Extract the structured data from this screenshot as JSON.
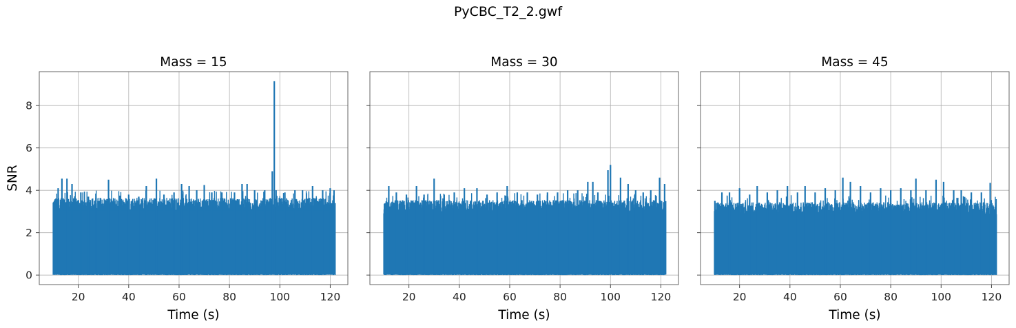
{
  "figure": {
    "suptitle": "PyCBC_T2_2.gwf"
  },
  "chart_data": [
    {
      "type": "line",
      "title": "Mass = 15",
      "xlabel": "Time (s)",
      "ylabel": "SNR",
      "xlim": [
        4.5,
        127
      ],
      "ylim": [
        -0.45,
        9.6
      ],
      "xticks": [
        20,
        40,
        60,
        80,
        100,
        120
      ],
      "yticks": [
        0,
        2,
        4,
        6,
        8
      ],
      "grid": true,
      "color": "#1f77b4",
      "series": [
        {
          "x_range": [
            10,
            122
          ],
          "noise_floor": 0.05,
          "typical_max": 3.6,
          "peaks": [
            {
              "x": 10.2,
              "y": 3.3
            },
            {
              "x": 12,
              "y": 4.1
            },
            {
              "x": 13.5,
              "y": 4.55
            },
            {
              "x": 15.5,
              "y": 4.55
            },
            {
              "x": 17.5,
              "y": 4.3
            },
            {
              "x": 21,
              "y": 3.9
            },
            {
              "x": 24,
              "y": 3.7
            },
            {
              "x": 27,
              "y": 3.65
            },
            {
              "x": 32,
              "y": 4.5
            },
            {
              "x": 36.5,
              "y": 3.75
            },
            {
              "x": 40,
              "y": 3.8
            },
            {
              "x": 44,
              "y": 3.7
            },
            {
              "x": 47,
              "y": 4.2
            },
            {
              "x": 51,
              "y": 4.55
            },
            {
              "x": 54,
              "y": 3.8
            },
            {
              "x": 58,
              "y": 3.9
            },
            {
              "x": 61,
              "y": 4.3
            },
            {
              "x": 64,
              "y": 4.2
            },
            {
              "x": 67,
              "y": 4.0
            },
            {
              "x": 70,
              "y": 4.25
            },
            {
              "x": 73,
              "y": 3.9
            },
            {
              "x": 77,
              "y": 3.9
            },
            {
              "x": 82,
              "y": 3.9
            },
            {
              "x": 85,
              "y": 4.3
            },
            {
              "x": 87,
              "y": 4.3
            },
            {
              "x": 90,
              "y": 4.0
            },
            {
              "x": 94,
              "y": 4.0
            },
            {
              "x": 97,
              "y": 4.9
            },
            {
              "x": 97.8,
              "y": 9.15
            },
            {
              "x": 98.5,
              "y": 4.0
            },
            {
              "x": 102,
              "y": 3.9
            },
            {
              "x": 106,
              "y": 4.0
            },
            {
              "x": 109,
              "y": 4.0
            },
            {
              "x": 113,
              "y": 4.2
            },
            {
              "x": 117,
              "y": 4.0
            },
            {
              "x": 120,
              "y": 4.1
            },
            {
              "x": 121.5,
              "y": 4.0
            }
          ]
        }
      ]
    },
    {
      "type": "line",
      "title": "Mass = 30",
      "xlabel": "Time (s)",
      "ylabel": "",
      "xlim": [
        4.5,
        127
      ],
      "ylim": [
        -0.45,
        9.6
      ],
      "xticks": [
        20,
        40,
        60,
        80,
        100,
        120
      ],
      "yticks": [
        0,
        2,
        4,
        6,
        8
      ],
      "grid": true,
      "color": "#1f77b4",
      "series": [
        {
          "x_range": [
            10,
            122
          ],
          "noise_floor": 0.05,
          "typical_max": 3.5,
          "peaks": [
            {
              "x": 10.2,
              "y": 3.1
            },
            {
              "x": 12,
              "y": 4.2
            },
            {
              "x": 15,
              "y": 3.9
            },
            {
              "x": 19,
              "y": 3.8
            },
            {
              "x": 23,
              "y": 4.2
            },
            {
              "x": 26,
              "y": 3.8
            },
            {
              "x": 30,
              "y": 4.55
            },
            {
              "x": 34,
              "y": 3.8
            },
            {
              "x": 38,
              "y": 3.9
            },
            {
              "x": 42,
              "y": 4.1
            },
            {
              "x": 47,
              "y": 4.1
            },
            {
              "x": 51,
              "y": 3.8
            },
            {
              "x": 55,
              "y": 3.9
            },
            {
              "x": 59,
              "y": 4.2
            },
            {
              "x": 63,
              "y": 3.9
            },
            {
              "x": 67,
              "y": 3.9
            },
            {
              "x": 71,
              "y": 3.8
            },
            {
              "x": 75,
              "y": 3.9
            },
            {
              "x": 79,
              "y": 3.9
            },
            {
              "x": 83,
              "y": 4.0
            },
            {
              "x": 87,
              "y": 4.0
            },
            {
              "x": 91,
              "y": 4.4
            },
            {
              "x": 93,
              "y": 4.4
            },
            {
              "x": 95,
              "y": 3.9
            },
            {
              "x": 99,
              "y": 4.95
            },
            {
              "x": 100,
              "y": 5.2
            },
            {
              "x": 104,
              "y": 4.6
            },
            {
              "x": 107,
              "y": 4.3
            },
            {
              "x": 110,
              "y": 4.0
            },
            {
              "x": 113,
              "y": 3.9
            },
            {
              "x": 116,
              "y": 4.0
            },
            {
              "x": 119.5,
              "y": 4.6
            },
            {
              "x": 121.5,
              "y": 4.3
            }
          ]
        }
      ]
    },
    {
      "type": "line",
      "title": "Mass = 45",
      "xlabel": "Time (s)",
      "ylabel": "",
      "xlim": [
        4.5,
        127
      ],
      "ylim": [
        -0.45,
        9.6
      ],
      "xticks": [
        20,
        40,
        60,
        80,
        100,
        120
      ],
      "yticks": [
        0,
        2,
        4,
        6,
        8
      ],
      "grid": true,
      "color": "#1f77b4",
      "series": [
        {
          "x_range": [
            10,
            122
          ],
          "noise_floor": 0.05,
          "typical_max": 3.4,
          "peaks": [
            {
              "x": 10.2,
              "y": 3.5
            },
            {
              "x": 13,
              "y": 3.9
            },
            {
              "x": 16,
              "y": 3.9
            },
            {
              "x": 20,
              "y": 4.1
            },
            {
              "x": 24,
              "y": 3.8
            },
            {
              "x": 27,
              "y": 4.2
            },
            {
              "x": 31,
              "y": 3.9
            },
            {
              "x": 35,
              "y": 4.0
            },
            {
              "x": 39,
              "y": 4.2
            },
            {
              "x": 43,
              "y": 3.9
            },
            {
              "x": 46,
              "y": 4.2
            },
            {
              "x": 50,
              "y": 3.9
            },
            {
              "x": 54,
              "y": 4.1
            },
            {
              "x": 58,
              "y": 4.0
            },
            {
              "x": 61,
              "y": 4.6
            },
            {
              "x": 64,
              "y": 4.4
            },
            {
              "x": 68,
              "y": 4.2
            },
            {
              "x": 72,
              "y": 3.9
            },
            {
              "x": 76,
              "y": 4.1
            },
            {
              "x": 80,
              "y": 4.0
            },
            {
              "x": 84,
              "y": 4.1
            },
            {
              "x": 88,
              "y": 4.0
            },
            {
              "x": 90,
              "y": 4.55
            },
            {
              "x": 94,
              "y": 4.0
            },
            {
              "x": 98,
              "y": 4.5
            },
            {
              "x": 101,
              "y": 4.4
            },
            {
              "x": 105,
              "y": 4.0
            },
            {
              "x": 108,
              "y": 4.0
            },
            {
              "x": 112,
              "y": 3.9
            },
            {
              "x": 116,
              "y": 3.9
            },
            {
              "x": 119.5,
              "y": 4.35
            },
            {
              "x": 121.5,
              "y": 3.2
            }
          ]
        }
      ]
    }
  ]
}
